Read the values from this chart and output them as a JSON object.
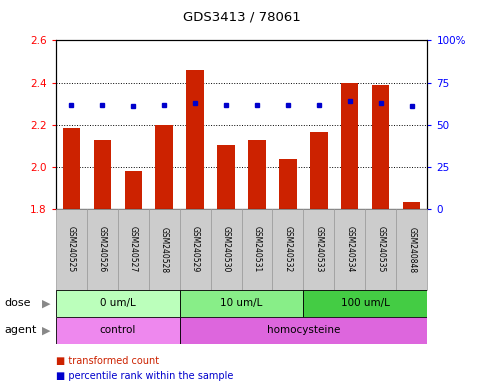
{
  "title": "GDS3413 / 78061",
  "samples": [
    "GSM240525",
    "GSM240526",
    "GSM240527",
    "GSM240528",
    "GSM240529",
    "GSM240530",
    "GSM240531",
    "GSM240532",
    "GSM240533",
    "GSM240534",
    "GSM240535",
    "GSM240848"
  ],
  "transformed_count": [
    2.185,
    2.13,
    1.98,
    2.2,
    2.46,
    2.105,
    2.13,
    2.04,
    2.165,
    2.4,
    2.39,
    1.835
  ],
  "percentile_rank": [
    62,
    62,
    61,
    62,
    63,
    62,
    62,
    62,
    62,
    64,
    63,
    61
  ],
  "ylim_left": [
    1.8,
    2.6
  ],
  "ylim_right": [
    0,
    100
  ],
  "yticks_left": [
    1.8,
    2.0,
    2.2,
    2.4,
    2.6
  ],
  "yticks_right": [
    0,
    25,
    50,
    75,
    100
  ],
  "ytick_labels_left": [
    "1.8",
    "2.0",
    "2.2",
    "2.4",
    "2.6"
  ],
  "ytick_labels_right": [
    "0",
    "25",
    "50",
    "75",
    "100%"
  ],
  "bar_color": "#cc2200",
  "dot_color": "#0000cc",
  "dose_groups": [
    {
      "label": "0 um/L",
      "start": 0,
      "end": 4,
      "color": "#bbffbb"
    },
    {
      "label": "10 um/L",
      "start": 4,
      "end": 8,
      "color": "#88ee88"
    },
    {
      "label": "100 um/L",
      "start": 8,
      "end": 12,
      "color": "#44cc44"
    }
  ],
  "agent_groups": [
    {
      "label": "control",
      "start": 0,
      "end": 4,
      "color": "#ee88ee"
    },
    {
      "label": "homocysteine",
      "start": 4,
      "end": 12,
      "color": "#dd66dd"
    }
  ],
  "dose_label": "dose",
  "agent_label": "agent",
  "grid_style": "dotted",
  "tick_label_area_color": "#cccccc",
  "tick_label_area_border": "#999999",
  "bar_bottom": 1.8
}
